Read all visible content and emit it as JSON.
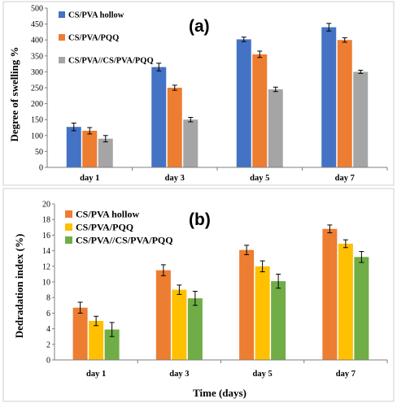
{
  "figure": {
    "xlabel_shared": "Time (days)"
  },
  "chart_data": [
    {
      "panel": "(a)",
      "type": "bar",
      "categories": [
        "day 1",
        "day 3",
        "day 5",
        "day 7"
      ],
      "ylabel": "Degree of swelling %",
      "ylim": [
        0,
        500
      ],
      "yticks": [
        0,
        50,
        100,
        150,
        200,
        250,
        300,
        350,
        400,
        450,
        500
      ],
      "grid": false,
      "legend_position": "top-left",
      "series": [
        {
          "name": "CS/PVA hollow",
          "color": "#4472C4",
          "values": [
            127,
            315,
            402,
            440
          ],
          "errors": [
            12,
            12,
            7,
            12
          ]
        },
        {
          "name": "CS/PVA/PQQ",
          "color": "#ED7D31",
          "values": [
            115,
            250,
            355,
            400
          ],
          "errors": [
            10,
            8,
            10,
            7
          ]
        },
        {
          "name": "CS/PVA//CS/PVA/PQQ",
          "color": "#A5A5A5",
          "values": [
            90,
            150,
            245,
            300
          ],
          "errors": [
            10,
            7,
            7,
            5
          ]
        }
      ]
    },
    {
      "panel": "(b)",
      "type": "bar",
      "categories": [
        "day 1",
        "day 3",
        "day 5",
        "day 7"
      ],
      "ylabel": "Dedradation index (%)",
      "ylim": [
        0,
        20
      ],
      "yticks": [
        0,
        2,
        4,
        6,
        8,
        10,
        12,
        14,
        16,
        18,
        20
      ],
      "grid": false,
      "legend_position": "top-left",
      "series": [
        {
          "name": "CS/PVA hollow",
          "color": "#ED7D31",
          "values": [
            6.7,
            11.5,
            14.1,
            16.8
          ],
          "errors": [
            0.7,
            0.7,
            0.6,
            0.5
          ]
        },
        {
          "name": "CS/PVA/PQQ",
          "color": "#FFC000",
          "values": [
            5.0,
            9.0,
            12.0,
            14.9
          ],
          "errors": [
            0.6,
            0.6,
            0.7,
            0.5
          ]
        },
        {
          "name": "CS/PVA//CS/PVA/PQQ",
          "color": "#70AD47",
          "values": [
            3.9,
            7.9,
            10.1,
            13.2
          ],
          "errors": [
            0.9,
            0.9,
            0.9,
            0.7
          ]
        }
      ]
    }
  ]
}
